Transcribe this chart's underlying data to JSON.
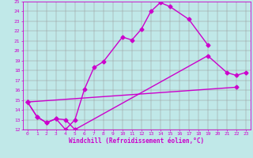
{
  "xlabel": "Windchill (Refroidissement éolien,°C)",
  "xlim": [
    -0.5,
    23.5
  ],
  "ylim": [
    12,
    25
  ],
  "xticks": [
    0,
    1,
    2,
    3,
    4,
    5,
    6,
    7,
    8,
    9,
    10,
    11,
    12,
    13,
    14,
    15,
    16,
    17,
    18,
    19,
    20,
    21,
    22,
    23
  ],
  "yticks": [
    12,
    13,
    14,
    15,
    16,
    17,
    18,
    19,
    20,
    21,
    22,
    23,
    24,
    25
  ],
  "background_color": "#c0e8e8",
  "line_color": "#cc00cc",
  "grid_color": "#999999",
  "line1_x": [
    0,
    1,
    2,
    3,
    4,
    5,
    6,
    7,
    8,
    10,
    11,
    12,
    13,
    14,
    15,
    17,
    19
  ],
  "line1_y": [
    14.8,
    13.3,
    12.7,
    13.1,
    12.0,
    13.0,
    16.1,
    18.3,
    18.9,
    21.4,
    21.1,
    22.2,
    24.0,
    24.9,
    24.5,
    23.2,
    20.6
  ],
  "line2_seg1_x": [
    0,
    1,
    2,
    3,
    4,
    5
  ],
  "line2_seg1_y": [
    14.8,
    13.3,
    12.7,
    13.1,
    13.0,
    12.0
  ],
  "line2_seg2_x": [
    5,
    19,
    21,
    22,
    23
  ],
  "line2_seg2_y": [
    12.0,
    19.5,
    17.8,
    17.5,
    17.8
  ],
  "line3_x": [
    0,
    22
  ],
  "line3_y": [
    14.8,
    16.3
  ],
  "marker_size": 2.5,
  "linewidth": 1.0,
  "xlabel_fontsize": 5.5,
  "tick_fontsize": 4.5
}
